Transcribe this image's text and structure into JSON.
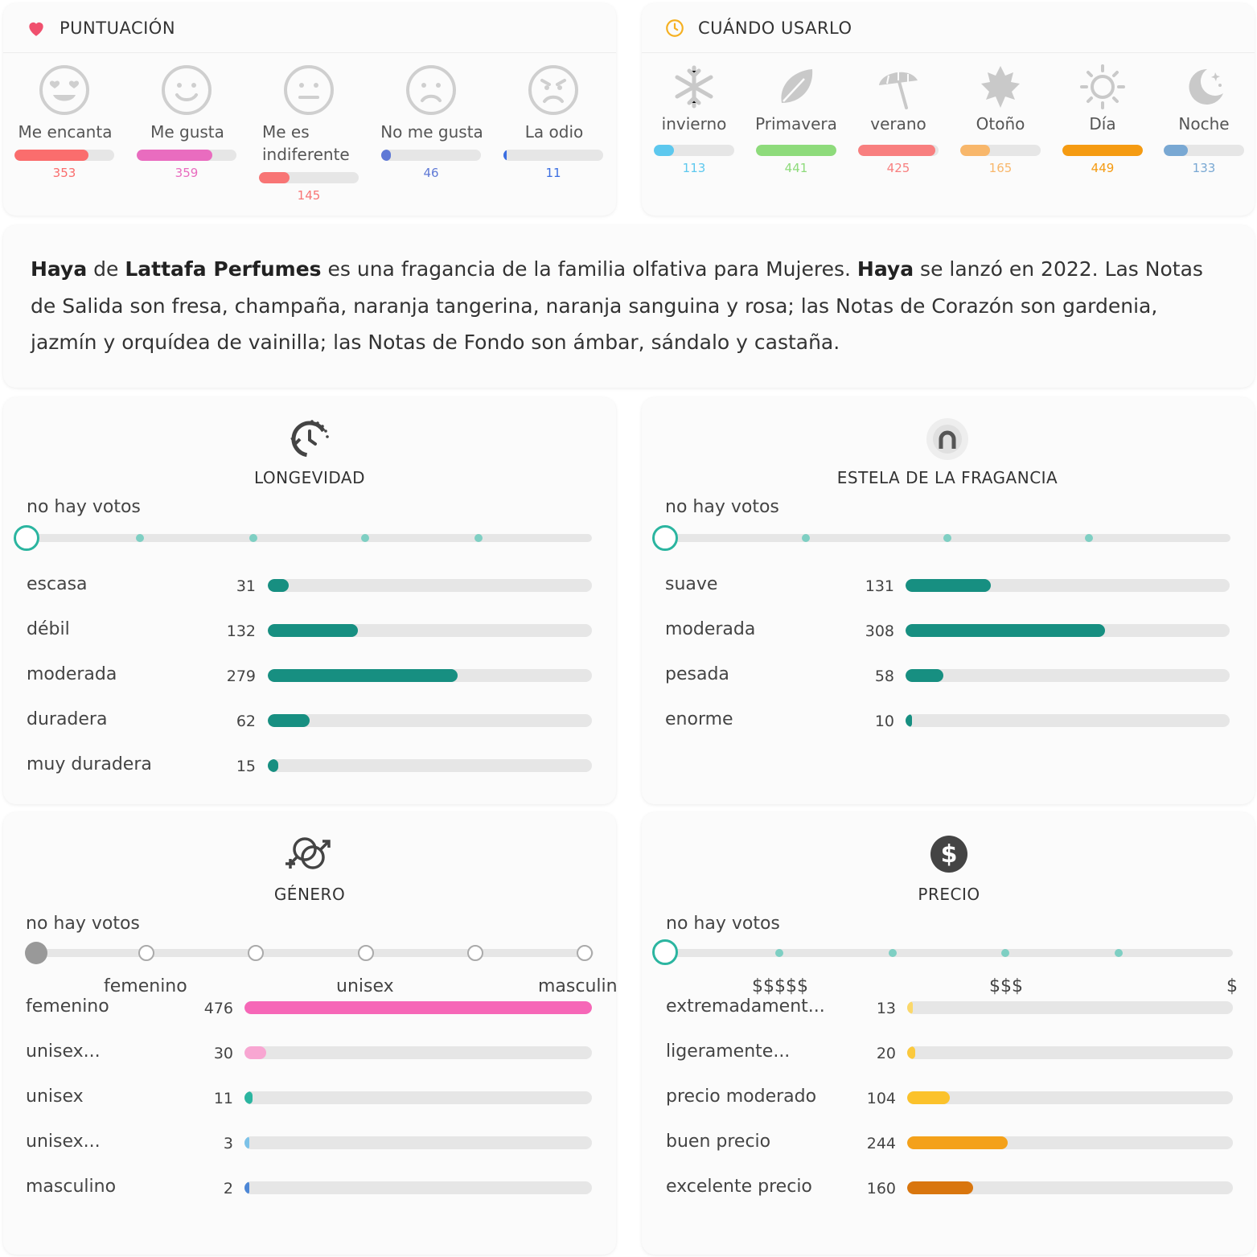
{
  "rating": {
    "title": "PUNTUACIÓN",
    "max": 476,
    "items": [
      {
        "label": "Me encanta",
        "count": "353",
        "value": 353,
        "color": "#fa6d6d",
        "icon": "love-face-icon"
      },
      {
        "label": "Me gusta",
        "count": "359",
        "value": 359,
        "color": "#e96cbf",
        "icon": "smile-face-icon"
      },
      {
        "label": "Me es indiferente",
        "count": "145",
        "value": 145,
        "color": "#f87575",
        "icon": "neutral-face-icon"
      },
      {
        "label": "No me gusta",
        "count": "46",
        "value": 46,
        "color": "#5f79d6",
        "icon": "sad-face-icon"
      },
      {
        "label": "La odio",
        "count": "11",
        "value": 11,
        "color": "#3b6ee1",
        "icon": "angry-face-icon"
      }
    ]
  },
  "when": {
    "title": "CUÁNDO USARLO",
    "items": [
      {
        "label": "invierno",
        "count": "113",
        "fraction": 0.25,
        "color": "#5dc8ee",
        "icon": "snowflake-icon"
      },
      {
        "label": "Primavera",
        "count": "441",
        "fraction": 1.0,
        "color": "#8edb7b",
        "icon": "leaf-icon"
      },
      {
        "label": "verano",
        "count": "425",
        "fraction": 0.96,
        "color": "#f87f7f",
        "icon": "umbrella-icon"
      },
      {
        "label": "Otoño",
        "count": "165",
        "fraction": 0.37,
        "color": "#f8b76b",
        "icon": "maple-leaf-icon"
      },
      {
        "label": "Día",
        "count": "449",
        "fraction": 1.0,
        "color": "#f59b12",
        "icon": "sun-icon"
      },
      {
        "label": "Noche",
        "count": "133",
        "fraction": 0.3,
        "color": "#79a8d3",
        "icon": "moon-icon"
      }
    ]
  },
  "description": {
    "name": "Haya",
    "de": "de",
    "brand": "Lattafa Perfumes",
    "part1": "es una fragancia de la familia olfativa para Mujeres.",
    "part2": "se lanzó en 2022. Las Notas de Salida son fresa, champaña, naranja tangerina, naranja sanguina y rosa; las Notas de Corazón son gardenia, jazmín y orquídea de vainilla; las Notas de Fondo son ámbar, sándalo y castaña."
  },
  "longevity": {
    "title": "LONGEVIDAD",
    "no_votes": "no hay votos",
    "icon": "clock-history-icon",
    "color": "#178f81",
    "max": 476,
    "items": [
      {
        "label": "escasa",
        "count": "31",
        "value": 31
      },
      {
        "label": "débil",
        "count": "132",
        "value": 132
      },
      {
        "label": "moderada",
        "count": "279",
        "value": 279
      },
      {
        "label": "duradera",
        "count": "62",
        "value": 62
      },
      {
        "label": "muy duradera",
        "count": "15",
        "value": 15
      }
    ]
  },
  "sillage": {
    "title": "ESTELA DE LA FRAGANCIA",
    "no_votes": "no hay votos",
    "icon": "sillage-icon",
    "color": "#178f81",
    "max": 500,
    "items": [
      {
        "label": "suave",
        "count": "131",
        "value": 131
      },
      {
        "label": "moderada",
        "count": "308",
        "value": 308
      },
      {
        "label": "pesada",
        "count": "58",
        "value": 58
      },
      {
        "label": "enorme",
        "count": "10",
        "value": 10
      }
    ]
  },
  "gender": {
    "title": "GÉNERO",
    "no_votes": "no hay votos",
    "icon": "gender-icon",
    "scale": [
      "femenino",
      "unisex",
      "masculin"
    ],
    "max": 476,
    "items": [
      {
        "label": "femenino",
        "count": "476",
        "value": 476,
        "color": "#f667b7"
      },
      {
        "label": "unisex...",
        "count": "30",
        "value": 30,
        "color": "#f8a6d2"
      },
      {
        "label": "unisex",
        "count": "11",
        "value": 11,
        "color": "#2bb5a0"
      },
      {
        "label": "unisex...",
        "count": "3",
        "value": 3,
        "color": "#7cc2e8"
      },
      {
        "label": "masculino",
        "count": "2",
        "value": 2,
        "color": "#4d87d6"
      }
    ]
  },
  "price": {
    "title": "PRECIO",
    "no_votes": "no hay votos",
    "icon": "dollar-icon",
    "scale": [
      "$$$$$",
      "$$$",
      "$"
    ],
    "max": 790,
    "items": [
      {
        "label": "extremadament...",
        "count": "13",
        "value": 13,
        "color": "#fbd86a"
      },
      {
        "label": "ligeramente...",
        "count": "20",
        "value": 20,
        "color": "#fbc93d"
      },
      {
        "label": "precio moderado",
        "count": "104",
        "value": 104,
        "color": "#fbc22b"
      },
      {
        "label": "buen precio",
        "count": "244",
        "value": 244,
        "color": "#f4a11a"
      },
      {
        "label": "excelente precio",
        "count": "160",
        "value": 160,
        "color": "#d9760e"
      }
    ]
  }
}
